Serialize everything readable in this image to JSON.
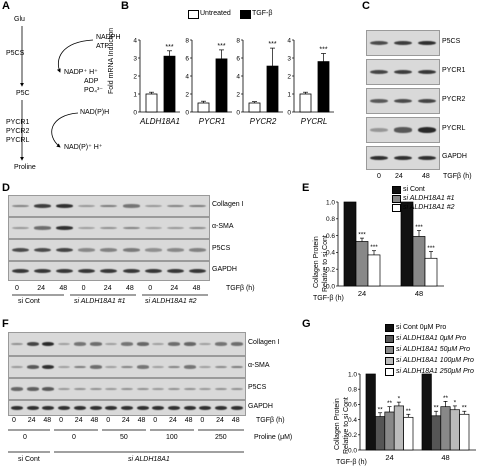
{
  "panels": {
    "A": {
      "letter": "A",
      "metabolites": [
        "Glu",
        "P5C",
        "Proline"
      ],
      "enzymes": [
        "P5CS",
        "PYCR1",
        "PYCR2",
        "PYCRL"
      ],
      "cofactors": {
        "top": [
          "NADPH",
          "ATP"
        ],
        "mid": [
          "NADP⁺  H⁺",
          "ADP",
          "PO₄³⁻"
        ],
        "nad": "NAD(P)H",
        "nadout": "NAD(P)⁺  H⁺"
      }
    },
    "B": {
      "letter": "B",
      "legend": [
        "Untreated",
        "TGF-β"
      ],
      "ylabel": "Fold mRNA Induction",
      "significance": "***"
    },
    "C": {
      "letter": "C",
      "blots": [
        "P5CS",
        "PYCR1",
        "PYCR2",
        "PYCRL",
        "GAPDH"
      ],
      "times": [
        "0",
        "24",
        "48"
      ],
      "xlabel": "TGFβ (h)"
    },
    "D": {
      "letter": "D",
      "blots": [
        "Collagen I",
        "α-SMA",
        "P5CS",
        "GAPDH"
      ],
      "times": [
        "0",
        "24",
        "48",
        "0",
        "24",
        "48",
        "0",
        "24",
        "48"
      ],
      "xlabel": "TGFβ (h)",
      "groups": [
        "si Cont",
        "si ALDH18A1 #1",
        "si ALDH18A1 #2"
      ]
    },
    "E": {
      "letter": "E",
      "legend": [
        "si Cont",
        "si ALDH18A1 #1",
        "si ALDH18A1 #2"
      ],
      "ylabel": [
        "Collagen Protein",
        "Relative to si Cont"
      ],
      "xlabel": "TGF-β (h)",
      "significance": "***"
    },
    "F": {
      "letter": "F",
      "blots": [
        "Collagen I",
        "α-SMA",
        "P5CS",
        "GAPDH"
      ],
      "times": [
        "0",
        "24",
        "48",
        "0",
        "24",
        "48",
        "0",
        "24",
        "48",
        "0",
        "24",
        "48",
        "0",
        "24",
        "48"
      ],
      "xlabel": "TGFβ (h)",
      "proline_label": "Proline (μM)",
      "proline": [
        "0",
        "0",
        "50",
        "100",
        "250"
      ],
      "groups": [
        "si Cont",
        "si ALDH18A1"
      ]
    },
    "G": {
      "letter": "G",
      "legend": [
        "si Cont 0μM Pro",
        "si ALDH18A1 0μM Pro",
        "si ALDH18A1 50μM Pro",
        "si ALDH18A1 100μM Pro",
        "si ALDH18A1 250μM Pro"
      ],
      "ylabel": [
        "Collagen Protein",
        "Relative to si Cont"
      ],
      "xlabel": "TGF-β (h)",
      "stars": [
        "**",
        "**",
        "*",
        "**",
        "**",
        "**",
        "*",
        "**",
        "**"
      ]
    }
  },
  "chart_data": [
    {
      "type": "bar",
      "panel": "B",
      "title": "ALDH18A1",
      "categories": [
        "Untreated",
        "TGF-β"
      ],
      "values": [
        1.0,
        3.1
      ],
      "errors": [
        0.1,
        0.3
      ],
      "ylim": [
        0,
        4
      ],
      "yticks": [
        0,
        1,
        2,
        3,
        4
      ],
      "colors": [
        "#ffffff",
        "#000000"
      ]
    },
    {
      "type": "bar",
      "panel": "B",
      "title": "PYCR1",
      "categories": [
        "Untreated",
        "TGF-β"
      ],
      "values": [
        1.0,
        5.9
      ],
      "errors": [
        0.2,
        1.0
      ],
      "ylim": [
        0,
        8
      ],
      "yticks": [
        0,
        2,
        4,
        6,
        8
      ],
      "colors": [
        "#ffffff",
        "#000000"
      ]
    },
    {
      "type": "bar",
      "panel": "B",
      "title": "PYCR2",
      "categories": [
        "Untreated",
        "TGF-β"
      ],
      "values": [
        1.0,
        5.1
      ],
      "errors": [
        0.15,
        2.0
      ],
      "ylim": [
        0,
        8
      ],
      "yticks": [
        0,
        2,
        4,
        6,
        8
      ],
      "colors": [
        "#ffffff",
        "#000000"
      ]
    },
    {
      "type": "bar",
      "panel": "B",
      "title": "PYCRL",
      "categories": [
        "Untreated",
        "TGF-β"
      ],
      "values": [
        1.0,
        2.8
      ],
      "errors": [
        0.1,
        0.45
      ],
      "ylim": [
        0,
        4
      ],
      "yticks": [
        0,
        1,
        2,
        3,
        4
      ],
      "colors": [
        "#ffffff",
        "#000000"
      ]
    },
    {
      "type": "bar",
      "panel": "E",
      "categories": [
        "24",
        "48"
      ],
      "series": [
        {
          "name": "si Cont",
          "values": [
            1.0,
            1.0
          ],
          "errors": [
            0,
            0
          ],
          "color": "#111111"
        },
        {
          "name": "si ALDH18A1 #1",
          "values": [
            0.53,
            0.59
          ],
          "errors": [
            0.04,
            0.07
          ],
          "color": "#888888"
        },
        {
          "name": "si ALDH18A1 #2",
          "values": [
            0.37,
            0.33
          ],
          "errors": [
            0.05,
            0.08
          ],
          "color": "#ffffff"
        }
      ],
      "ylim": [
        0,
        1.0
      ],
      "yticks": [
        0,
        0.2,
        0.4,
        0.6,
        0.8,
        1.0
      ]
    },
    {
      "type": "bar",
      "panel": "G",
      "categories": [
        "24",
        "48"
      ],
      "series": [
        {
          "name": "si Cont 0μM Pro",
          "values": [
            1.0,
            1.0
          ],
          "errors": [
            0,
            0
          ],
          "color": "#111111"
        },
        {
          "name": "si ALDH18A1 0μM Pro",
          "values": [
            0.44,
            0.45
          ],
          "errors": [
            0.05,
            0.06
          ],
          "color": "#555555"
        },
        {
          "name": "si ALDH18A1 50μM Pro",
          "values": [
            0.5,
            0.57
          ],
          "errors": [
            0.07,
            0.07
          ],
          "color": "#888888"
        },
        {
          "name": "si ALDH18A1 100μM Pro",
          "values": [
            0.58,
            0.53
          ],
          "errors": [
            0.05,
            0.05
          ],
          "color": "#bbbbbb"
        },
        {
          "name": "si ALDH18A1 250μM Pro",
          "values": [
            0.43,
            0.47
          ],
          "errors": [
            0.04,
            0.04
          ],
          "color": "#ffffff"
        }
      ],
      "ylim": [
        0,
        1.0
      ],
      "yticks": [
        0,
        0.2,
        0.4,
        0.6,
        0.8,
        1.0
      ]
    }
  ]
}
